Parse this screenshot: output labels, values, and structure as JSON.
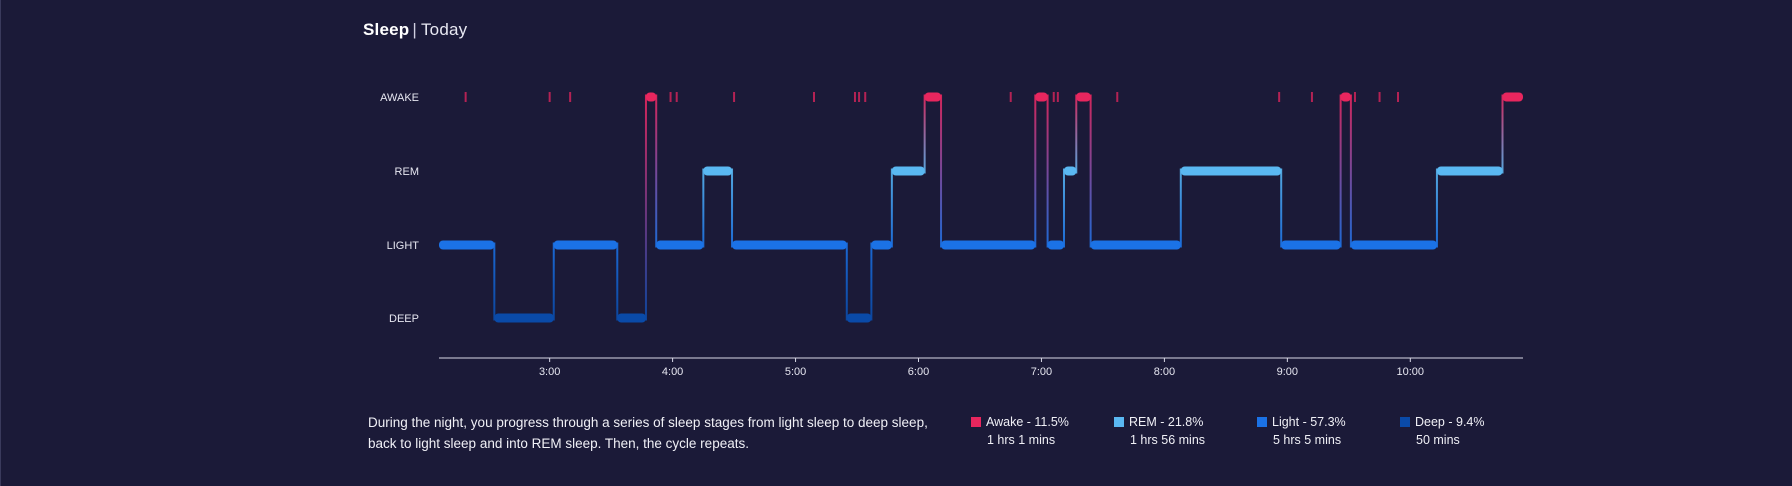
{
  "header": {
    "title": "Sleep",
    "separator": "|",
    "period": "Today"
  },
  "chart_data": {
    "type": "line",
    "title": "Sleep | Today",
    "stages": [
      "AWAKE",
      "REM",
      "LIGHT",
      "DEEP"
    ],
    "x_range": [
      "2:06",
      "10:55"
    ],
    "x_ticks": [
      "3:00",
      "4:00",
      "5:00",
      "6:00",
      "7:00",
      "8:00",
      "9:00",
      "10:00"
    ],
    "grid": false,
    "colors": {
      "AWAKE": "#e8265e",
      "REM": "#5ab8f2",
      "LIGHT": "#1b72e6",
      "DEEP": "#0a4aa8"
    },
    "hypnogram": [
      {
        "stage": "LIGHT",
        "start": "2:06",
        "end": "2:33"
      },
      {
        "stage": "DEEP",
        "start": "2:33",
        "end": "3:02"
      },
      {
        "stage": "LIGHT",
        "start": "3:02",
        "end": "3:33"
      },
      {
        "stage": "DEEP",
        "start": "3:33",
        "end": "3:47"
      },
      {
        "stage": "AWAKE",
        "start": "3:47",
        "end": "3:52"
      },
      {
        "stage": "LIGHT",
        "start": "3:52",
        "end": "4:15"
      },
      {
        "stage": "REM",
        "start": "4:15",
        "end": "4:29"
      },
      {
        "stage": "LIGHT",
        "start": "4:29",
        "end": "5:25"
      },
      {
        "stage": "DEEP",
        "start": "5:25",
        "end": "5:37"
      },
      {
        "stage": "LIGHT",
        "start": "5:37",
        "end": "5:47"
      },
      {
        "stage": "REM",
        "start": "5:47",
        "end": "6:03"
      },
      {
        "stage": "AWAKE",
        "start": "6:03",
        "end": "6:11"
      },
      {
        "stage": "LIGHT",
        "start": "6:11",
        "end": "6:57"
      },
      {
        "stage": "AWAKE",
        "start": "6:57",
        "end": "7:03"
      },
      {
        "stage": "LIGHT",
        "start": "7:03",
        "end": "7:11"
      },
      {
        "stage": "REM",
        "start": "7:11",
        "end": "7:17"
      },
      {
        "stage": "AWAKE",
        "start": "7:17",
        "end": "7:24"
      },
      {
        "stage": "LIGHT",
        "start": "7:24",
        "end": "8:08"
      },
      {
        "stage": "REM",
        "start": "8:08",
        "end": "8:57"
      },
      {
        "stage": "LIGHT",
        "start": "8:57",
        "end": "9:26"
      },
      {
        "stage": "AWAKE",
        "start": "9:26",
        "end": "9:31"
      },
      {
        "stage": "LIGHT",
        "start": "9:31",
        "end": "10:13"
      },
      {
        "stage": "REM",
        "start": "10:13",
        "end": "10:45"
      },
      {
        "stage": "AWAKE",
        "start": "10:45",
        "end": "10:55"
      }
    ],
    "brief_awakenings": [
      "2:19",
      "3:00",
      "3:10",
      "3:59",
      "4:02",
      "4:30",
      "5:09",
      "5:29",
      "5:31",
      "5:34",
      "6:45",
      "7:06",
      "7:08",
      "7:37",
      "8:56",
      "9:12",
      "9:33",
      "9:45",
      "9:54"
    ]
  },
  "description": "During the night, you progress through a series of sleep stages from light sleep to deep sleep, back to light sleep and into REM sleep. Then, the cycle repeats.",
  "legend": [
    {
      "label": "Awake - 11.5%",
      "duration": "1 hrs 1 mins",
      "color": "#e8265e",
      "icon": "square"
    },
    {
      "label": "REM - 21.8%",
      "duration": "1 hrs 56 mins",
      "color": "#5ab8f2",
      "icon": "square"
    },
    {
      "label": "Light - 57.3%",
      "duration": "5 hrs 5 mins",
      "color": "#1b72e6",
      "icon": "square"
    },
    {
      "label": "Deep - 9.4%",
      "duration": "50 mins",
      "color": "#0a4aa8",
      "icon": "square"
    }
  ]
}
